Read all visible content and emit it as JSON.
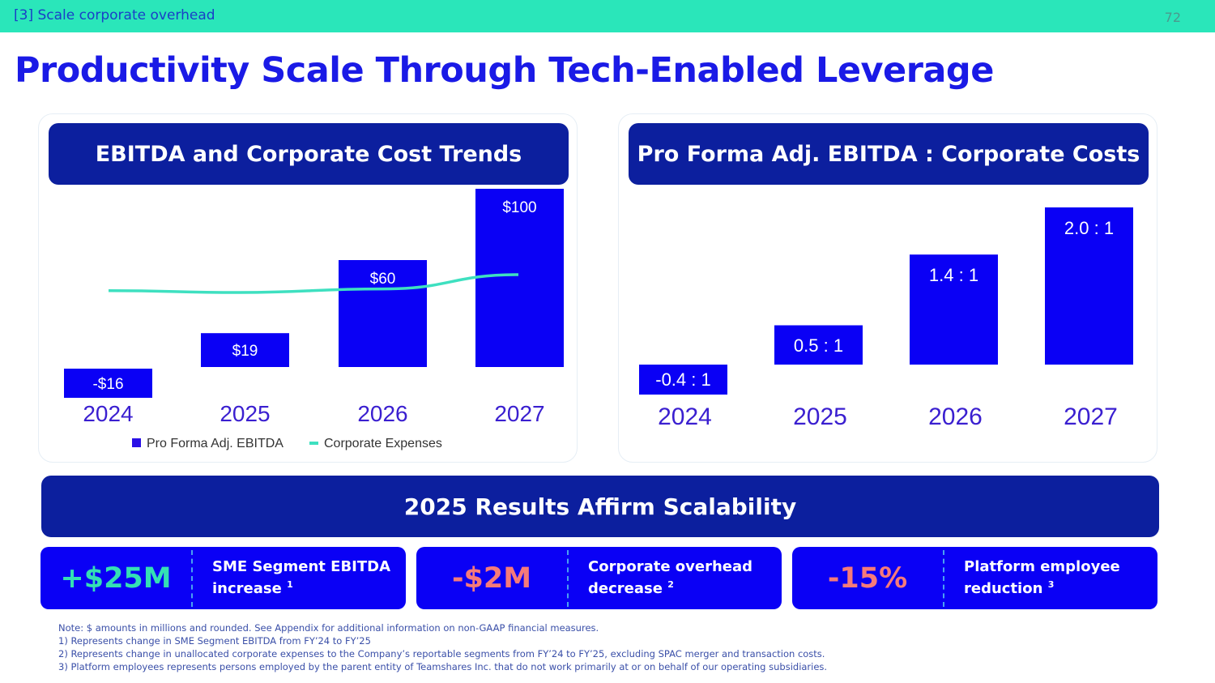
{
  "header": {
    "section": "[3] Scale corporate overhead",
    "page_number": "72"
  },
  "title": "Productivity Scale Through Tech-Enabled Leverage",
  "colors": {
    "topbar": "#2ae6ba",
    "title": "#1a1ae6",
    "navy": "#0c1f9e",
    "bar": "#0a00f5",
    "line": "#3ee0c0",
    "axis_label": "#3a1fd0",
    "positive": "#34e0b4",
    "negative": "#f57a7a"
  },
  "chart_data": [
    {
      "type": "bar",
      "title": "EBITDA and Corporate Cost Trends",
      "categories": [
        "2024",
        "2025",
        "2026",
        "2027"
      ],
      "series": [
        {
          "name": "Pro Forma Adj. EBITDA",
          "kind": "bar",
          "values": [
            -16,
            19,
            60,
            100
          ],
          "labels": [
            "-$16",
            "$19",
            "$60",
            "$100"
          ]
        },
        {
          "name": "Corporate Expenses",
          "kind": "line",
          "note": "unlabeled; relative level estimated",
          "values": [
            50,
            49,
            51,
            59
          ]
        }
      ],
      "legend": [
        "Pro Forma Adj. EBITDA",
        "Corporate Expenses"
      ],
      "legend_position": "bottom",
      "xlabel": "",
      "ylabel": "",
      "grid": false,
      "units": "$M"
    },
    {
      "type": "bar",
      "title": "Pro Forma Adj. EBITDA : Corporate Costs",
      "categories": [
        "2024",
        "2025",
        "2026",
        "2027"
      ],
      "series": [
        {
          "name": "Ratio",
          "values": [
            -0.4,
            0.5,
            1.4,
            2.0
          ],
          "labels": [
            "-0.4 : 1",
            "0.5 : 1",
            "1.4 : 1",
            "2.0 : 1"
          ]
        }
      ],
      "xlabel": "",
      "ylabel": "",
      "grid": false
    }
  ],
  "banner": "2025 Results Affirm Scalability",
  "kpis": [
    {
      "value": "+$25M",
      "line1": "SME Segment EBITDA",
      "line2": "increase",
      "note": "1",
      "tone": "positive"
    },
    {
      "value": "-$2M",
      "line1": "Corporate overhead",
      "line2": "decrease",
      "note": "2",
      "tone": "negative"
    },
    {
      "value": "-15%",
      "line1": "Platform employee",
      "line2": "reduction",
      "note": "3",
      "tone": "negative"
    }
  ],
  "notes": [
    "Note: $ amounts in millions and rounded. See Appendix for additional information on non-GAAP financial measures.",
    "1) Represents change in SME Segment EBITDA from FY’24 to FY’25",
    "2) Represents change in unallocated corporate expenses to the Company’s reportable segments from FY’24 to FY’25, excluding SPAC merger and transaction costs.",
    "3) Platform employees represents persons employed by the parent entity of Teamshares Inc. that do not work primarily at or on behalf of our operating subsidiaries."
  ]
}
